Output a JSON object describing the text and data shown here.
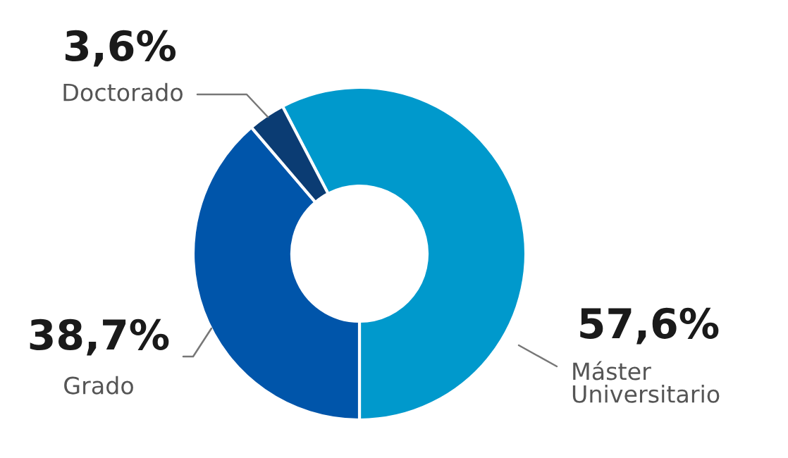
{
  "chart_data": {
    "type": "donut",
    "categories": [
      "Máster Universitario",
      "Grado",
      "Doctorado"
    ],
    "values": [
      57.6,
      38.7,
      3.6
    ],
    "value_labels": [
      "57,6%",
      "38,7%",
      "3,6%"
    ],
    "colors": [
      "#0099cc",
      "#0055aa",
      "#0b3c73"
    ],
    "legend": false
  }
}
